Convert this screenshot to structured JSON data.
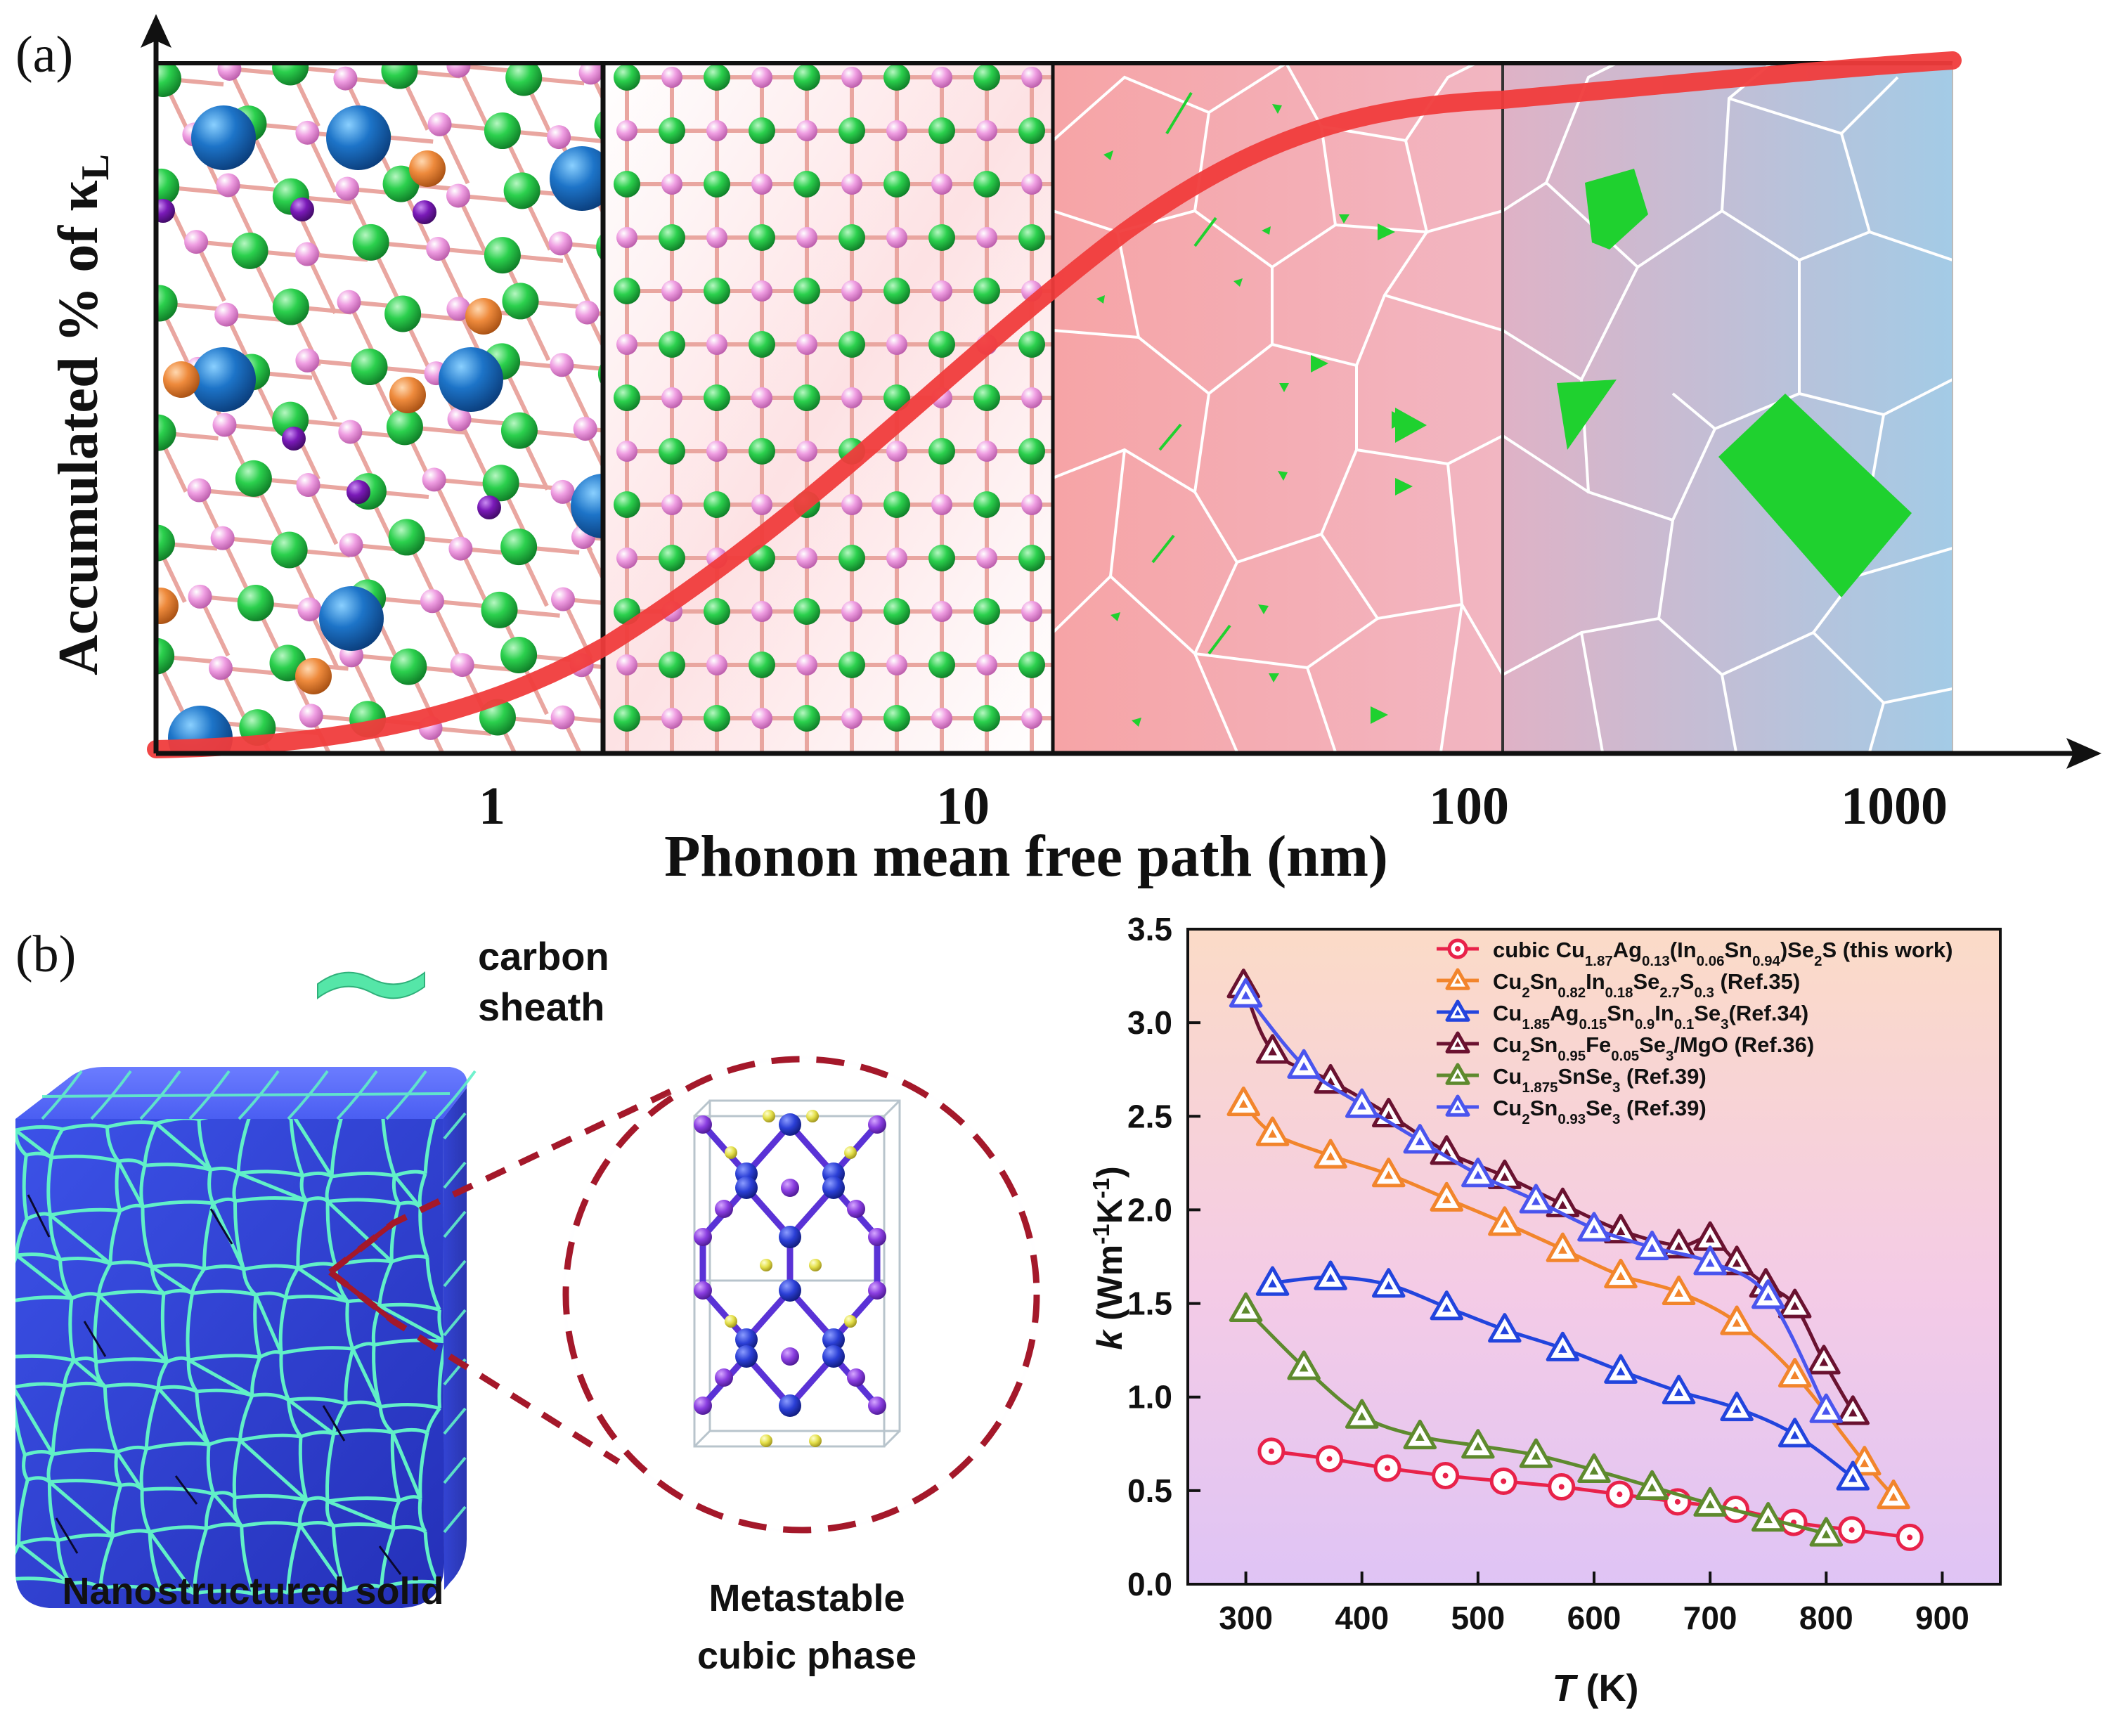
{
  "panel_a": {
    "label": "(a)",
    "ylabel": "Accumulated % of κ",
    "ylabel_sub": "L",
    "xlabel": "Phonon mean free path (nm)",
    "ticks": [
      "1",
      "10",
      "100",
      "1000"
    ],
    "colors": {
      "curve": "#f03c3c",
      "green": "#22c83c",
      "pink": "#ee88dd",
      "blue": "#1a6fc4",
      "orange": "#ee8a3c",
      "purple": "#7a1ab8"
    }
  },
  "panel_b": {
    "label": "(b)",
    "carbon_label_1": "carbon",
    "carbon_label_2": "sheath",
    "solid_caption": "Nanostructured solid",
    "phase_caption_1": "Metastable",
    "phase_caption_2": "cubic phase"
  },
  "chart_data": {
    "type": "line",
    "title": "",
    "xlabel": "T (K)",
    "ylabel": "k (Wm-1K-1)",
    "xlim": [
      250,
      950
    ],
    "ylim": [
      0.0,
      3.5
    ],
    "xticks": [
      300,
      400,
      500,
      600,
      700,
      800,
      900
    ],
    "yticks": [
      0.0,
      0.5,
      1.0,
      1.5,
      2.0,
      2.5,
      3.0,
      3.5
    ],
    "legend_position": "top-right",
    "series": [
      {
        "name": "cubic Cu1.87Ag0.13(In0.06Sn0.94)Se2S (this work)",
        "marker": "circle",
        "color": "#e8224a",
        "x": [
          322,
          372,
          422,
          472,
          522,
          572,
          622,
          672,
          722,
          772,
          822,
          872
        ],
        "y": [
          0.71,
          0.67,
          0.62,
          0.58,
          0.55,
          0.52,
          0.48,
          0.44,
          0.4,
          0.33,
          0.29,
          0.25
        ]
      },
      {
        "name": "Cu2Sn0.82In0.18Se2.7S0.3 (Ref.35)",
        "marker": "triangle",
        "color": "#f2852c",
        "x": [
          298,
          323,
          373,
          423,
          473,
          523,
          573,
          623,
          673,
          723,
          773,
          833,
          858
        ],
        "y": [
          2.57,
          2.41,
          2.29,
          2.19,
          2.06,
          1.93,
          1.79,
          1.65,
          1.56,
          1.4,
          1.12,
          0.65,
          0.47
        ]
      },
      {
        "name": "Cu1.85Ag0.15Sn0.9In0.1Se3(Ref.34)",
        "marker": "triangle",
        "color": "#2244dd",
        "x": [
          323,
          373,
          423,
          473,
          523,
          573,
          623,
          673,
          723,
          773,
          823
        ],
        "y": [
          1.61,
          1.64,
          1.6,
          1.48,
          1.36,
          1.26,
          1.14,
          1.03,
          0.94,
          0.8,
          0.57
        ]
      },
      {
        "name": "Cu2Sn0.95Fe0.05Se3/MgO (Ref.36)",
        "marker": "triangle",
        "color": "#6a1230",
        "x": [
          298,
          323,
          373,
          423,
          473,
          523,
          573,
          623,
          673,
          700,
          723,
          748,
          773,
          798,
          823
        ],
        "y": [
          3.2,
          2.85,
          2.69,
          2.51,
          2.31,
          2.18,
          2.03,
          1.89,
          1.81,
          1.85,
          1.72,
          1.6,
          1.49,
          1.19,
          0.92
        ]
      },
      {
        "name": "Cu1.875SnSe3 (Ref.39)",
        "marker": "triangle",
        "color": "#5e8a2e",
        "x": [
          300,
          350,
          400,
          450,
          500,
          550,
          600,
          650,
          700,
          750,
          800
        ],
        "y": [
          1.47,
          1.16,
          0.9,
          0.79,
          0.74,
          0.69,
          0.61,
          0.52,
          0.43,
          0.35,
          0.27
        ]
      },
      {
        "name": "Cu2Sn0.93Se3 (Ref.39)",
        "marker": "triangle",
        "color": "#4a55ee",
        "x": [
          300,
          350,
          400,
          450,
          500,
          550,
          600,
          650,
          700,
          750,
          800
        ],
        "y": [
          3.15,
          2.77,
          2.56,
          2.37,
          2.19,
          2.05,
          1.9,
          1.8,
          1.72,
          1.54,
          0.93
        ]
      }
    ],
    "legend_rich": [
      [
        [
          "cubic Cu",
          ""
        ],
        [
          "1.87",
          "s"
        ],
        [
          "Ag",
          ""
        ],
        [
          "0.13",
          "s"
        ],
        [
          "(In",
          ""
        ],
        [
          "0.06",
          "s"
        ],
        [
          "Sn",
          ""
        ],
        [
          "0.94",
          "s"
        ],
        [
          ")Se",
          ""
        ],
        [
          "2",
          "s"
        ],
        [
          "S (this work)",
          ""
        ]
      ],
      [
        [
          "Cu",
          ""
        ],
        [
          "2",
          "s"
        ],
        [
          "Sn",
          ""
        ],
        [
          "0.82",
          "s"
        ],
        [
          "In",
          ""
        ],
        [
          "0.18",
          "s"
        ],
        [
          "Se",
          ""
        ],
        [
          "2.7",
          "s"
        ],
        [
          "S",
          ""
        ],
        [
          "0.3",
          "s"
        ],
        [
          " (Ref.35)",
          ""
        ]
      ],
      [
        [
          "Cu",
          ""
        ],
        [
          "1.85",
          "s"
        ],
        [
          "Ag",
          ""
        ],
        [
          "0.15",
          "s"
        ],
        [
          "Sn",
          ""
        ],
        [
          "0.9",
          "s"
        ],
        [
          "In",
          ""
        ],
        [
          "0.1",
          "s"
        ],
        [
          "Se",
          ""
        ],
        [
          "3",
          "s"
        ],
        [
          "(Ref.34)",
          ""
        ]
      ],
      [
        [
          "Cu",
          ""
        ],
        [
          "2",
          "s"
        ],
        [
          "Sn",
          ""
        ],
        [
          "0.95",
          "s"
        ],
        [
          "Fe",
          ""
        ],
        [
          "0.05",
          "s"
        ],
        [
          "Se",
          ""
        ],
        [
          "3",
          "s"
        ],
        [
          "/MgO (Ref.36)",
          ""
        ]
      ],
      [
        [
          "Cu",
          ""
        ],
        [
          "1.875",
          "s"
        ],
        [
          "SnSe",
          ""
        ],
        [
          "3",
          "s"
        ],
        [
          " (Ref.39)",
          ""
        ]
      ],
      [
        [
          "Cu",
          ""
        ],
        [
          "2",
          "s"
        ],
        [
          "Sn",
          ""
        ],
        [
          "0.93",
          "s"
        ],
        [
          "Se",
          ""
        ],
        [
          "3",
          "s"
        ],
        [
          " (Ref.39)",
          ""
        ]
      ]
    ],
    "xlabel_rich": [
      [
        "T",
        "i"
      ],
      [
        " (K)",
        ""
      ]
    ],
    "ylabel_rich": [
      [
        "k",
        "i"
      ],
      [
        " (Wm",
        ""
      ],
      [
        "-1",
        "p"
      ],
      [
        "K",
        ""
      ],
      [
        "-1",
        "p"
      ],
      [
        ")",
        ""
      ]
    ]
  }
}
